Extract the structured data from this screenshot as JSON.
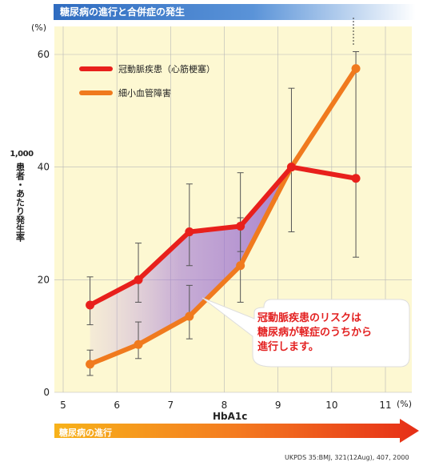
{
  "header": {
    "title": "糖尿病の進行と合併症の発生"
  },
  "units": {
    "y_unit": "(%)",
    "x_unit": "(%)"
  },
  "y_axis_title": {
    "top": "1,000",
    "vertical": "患者・あたり発生率"
  },
  "x_axis_title": "HbA1c",
  "progress_label": "糖尿病の進行",
  "source": "UKPDS 35:BMJ, 321(12Aug), 407, 2000",
  "callout": {
    "line1": "冠動脈疾患のリスクは",
    "line2": "糖尿病が軽症のうちから",
    "line3": "進行します。"
  },
  "colors": {
    "coronary": "#e8201c",
    "microvascular": "#f07a1e",
    "plot_bg": "#fdf8d2",
    "title_bar": "#2f6cc0",
    "callout_text": "#e32020"
  },
  "chart_data": {
    "type": "line",
    "x": [
      5.5,
      6.4,
      7.35,
      8.3,
      9.25,
      10.45
    ],
    "xlim": [
      5,
      11
    ],
    "ylim": [
      0,
      60
    ],
    "xticks": [
      5,
      6,
      7,
      8,
      9,
      10,
      11
    ],
    "yticks": [
      0,
      20,
      40,
      60
    ],
    "xlabel": "HbA1c",
    "ylabel": "1,000 患者・あたり発生率",
    "legend": "top-left",
    "grid": true,
    "series": [
      {
        "name": "冠動脈疾患（心筋梗塞）",
        "color": "#e8201c",
        "values": [
          15.5,
          20,
          28.5,
          29.5,
          40,
          38
        ],
        "err_low": [
          12,
          16,
          22.5,
          25,
          28.5,
          24
        ],
        "err_high": [
          20.5,
          26.5,
          37,
          39,
          54,
          60.5
        ]
      },
      {
        "name": "細小血管障害",
        "color": "#f07a1e",
        "values": [
          5,
          8.5,
          13.5,
          22.5,
          40,
          57.5
        ],
        "err_low": [
          3,
          6,
          9.5,
          16,
          40,
          57.5
        ],
        "err_high": [
          7.5,
          12.5,
          19,
          31,
          40,
          57.5
        ]
      }
    ]
  }
}
